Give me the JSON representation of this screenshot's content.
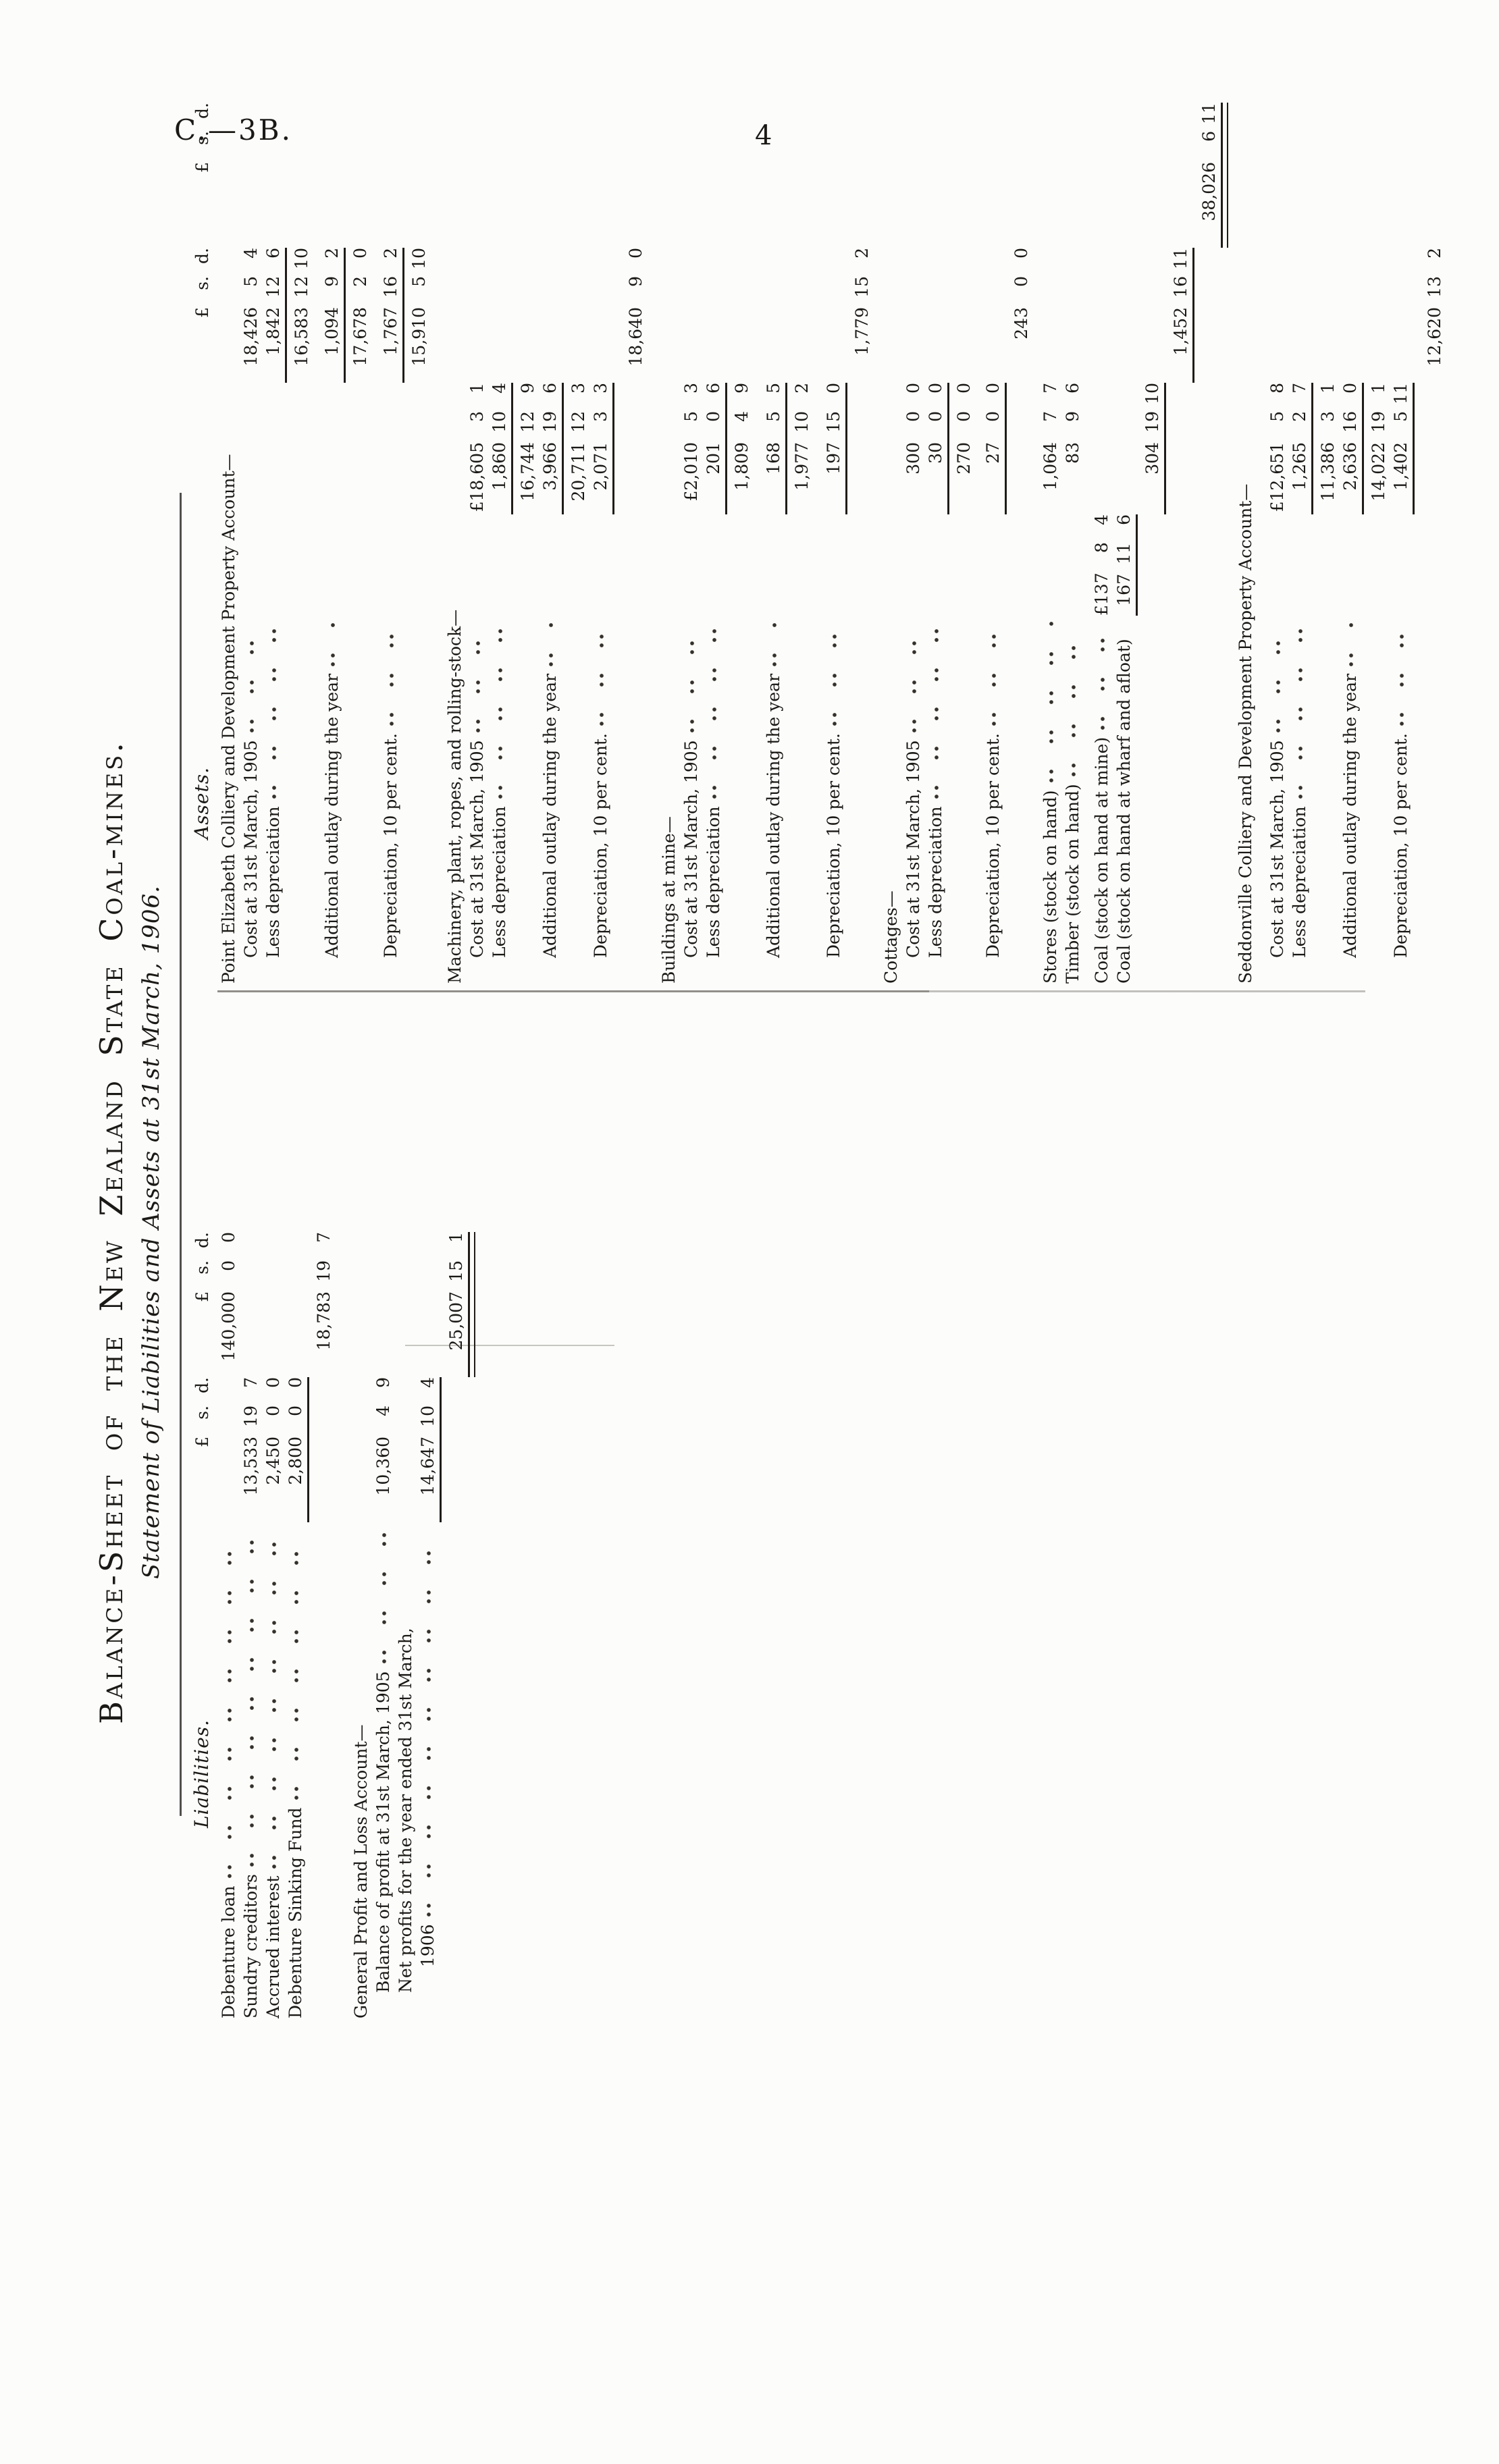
{
  "page": {
    "doc_ref": "C.—3B.",
    "page_number": "4"
  },
  "sheet": {
    "title": "Balance-Sheet of the New Zealand State Coal-mines.",
    "subtitle": "Statement of Liabilities and Assets at 31st March, 1906.",
    "money_header": {
      "pound": "£",
      "s": "s.",
      "d": "d."
    },
    "liabilities": {
      "heading": "Liabilities.",
      "rows": [
        {
          "l": "Debenture loan",
          "d": 1,
          "b": "140,000 0 0"
        },
        {
          "l": "Sundry creditors",
          "d": 1,
          "a": "13,533 19 7"
        },
        {
          "l": "Accrued interest",
          "d": 1,
          "a": "2,450 0 0"
        },
        {
          "l": "Debenture Sinking Fund",
          "d": 1,
          "a": "2,800 0 0"
        },
        {
          "rule": [
            "a"
          ]
        },
        {
          "b": "18,783 19 7"
        },
        {
          "l": "General Profit and Loss Account—",
          "span": 1,
          "mt": 22
        },
        {
          "l": "Balance of profit at 31st March, 1905",
          "i": 1,
          "d": 1,
          "a": "10,360 4 9"
        },
        {
          "l": "Net profits for the year ended 31st March,",
          "i": 1
        },
        {
          "l": "1906",
          "i": 2,
          "d": 1,
          "a": "14,647 10 4"
        },
        {
          "rule": [
            "a"
          ]
        },
        {
          "b": "25,007 15 1"
        },
        {
          "rule": [
            "b"
          ],
          "dbl": 1
        }
      ]
    },
    "assets": {
      "heading": "Assets.",
      "rows": [
        {
          "l": "Point Elizabeth Colliery and Development Property Account—",
          "span": 1
        },
        {
          "l": "Cost at 31st March, 1905",
          "i": 1,
          "d": 1,
          "c2": "18,426 5 4"
        },
        {
          "l": "Less depreciation",
          "i": 1,
          "d": 1,
          "c2": "1,842 12 6"
        },
        {
          "rule": [
            "c2"
          ]
        },
        {
          "c2": "16,583 12 10"
        },
        {
          "l": "Additional outlay during the year",
          "i": 1,
          "d": 1,
          "c2": "1,094 9 2",
          "mt": 12
        },
        {
          "rule": [
            "c2"
          ]
        },
        {
          "c2": "17,678 2 0"
        },
        {
          "l": "Depreciation, 10 per cent.",
          "i": 1,
          "d": 1,
          "c2": "1,767 16 2",
          "mt": 12
        },
        {
          "rule": [
            "c2"
          ]
        },
        {
          "c2": "15,910 5 10"
        },
        {
          "l": "Machinery, plant, ropes, and rolling-stock—",
          "span": 1,
          "mt": 20
        },
        {
          "l": "Cost at 31st March, 1905",
          "i": 1,
          "d": 1,
          "c1": "£18,605 3 1"
        },
        {
          "l": "Less depreciation",
          "i": 1,
          "d": 1,
          "c1": "1,860 10 4"
        },
        {
          "rule": [
            "c1"
          ]
        },
        {
          "c1": "16,744 12 9"
        },
        {
          "l": "Additional outlay during the year",
          "i": 1,
          "d": 1,
          "c1": "3,966 19 6"
        },
        {
          "rule": [
            "c1"
          ]
        },
        {
          "c1": "20,711 12 3"
        },
        {
          "l": "Depreciation, 10 per cent.",
          "i": 1,
          "d": 1,
          "c1": "2,071 3 3"
        },
        {
          "rule": [
            "c1"
          ]
        },
        {
          "c2": "18,640 9 0",
          "mt": 10
        },
        {
          "l": "Buildings at mine—",
          "span": 1,
          "mt": 16
        },
        {
          "l": "Cost at 31st March, 1905",
          "i": 1,
          "d": 1,
          "c1": "£2,010 5 3"
        },
        {
          "l": "Less depreciation",
          "i": 1,
          "d": 1,
          "c1": "201 0 6"
        },
        {
          "rule": [
            "c1"
          ]
        },
        {
          "c1": "1,809 4 9"
        },
        {
          "l": "Additional outlay during the year",
          "i": 1,
          "d": 1,
          "c1": "168 5 5",
          "mt": 14
        },
        {
          "rule": [
            "c1"
          ]
        },
        {
          "c1": "1,977 10 2"
        },
        {
          "l": "Depreciation, 10 per cent.",
          "i": 1,
          "d": 1,
          "c1": "197 15 0",
          "mt": 14
        },
        {
          "rule": [
            "c1"
          ]
        },
        {
          "c2": "1,779 15 2"
        },
        {
          "l": "Cottages—",
          "span": 1,
          "mt": 10
        },
        {
          "l": "Cost at 31st March, 1905",
          "i": 1,
          "d": 1,
          "c1": "300 0 0"
        },
        {
          "l": "Less depreciation",
          "i": 1,
          "d": 1,
          "c1": "30 0 0"
        },
        {
          "rule": [
            "c1"
          ]
        },
        {
          "c1": "270 0 0"
        },
        {
          "l": "Depreciation, 10 per cent.",
          "i": 1,
          "d": 1,
          "c1": "27 0 0",
          "mt": 10
        },
        {
          "rule": [
            "c1"
          ]
        },
        {
          "c2": "243 0 0"
        },
        {
          "l": "Stores (stock on hand)",
          "d": 1,
          "c1": "1,064 7 7",
          "mt": 10
        },
        {
          "l": "Timber (stock on hand)",
          "d": 1,
          "c1": "83 9 6"
        },
        {
          "l": "Coal (stock on hand at mine)",
          "d": 1,
          "inner": "£137 8 4",
          "mt": 10
        },
        {
          "l": "Coal (stock on hand at wharf and afloat)",
          "inner": "167 11 6"
        },
        {
          "rule": [
            "inner"
          ]
        },
        {
          "c1": "304 19 10"
        },
        {
          "rule": [
            "c1"
          ]
        },
        {
          "c2": "1,452 16 11"
        },
        {
          "rule": [
            "c2"
          ]
        },
        {
          "c3": "38,026 6 11"
        },
        {
          "rule": [
            "c3"
          ],
          "dbl": 1
        },
        {
          "l": "Seddonville Colliery and Development Property Account—",
          "span": 1,
          "mt": 12
        },
        {
          "l": "Cost at 31st March, 1905",
          "i": 1,
          "d": 1,
          "c1": "£12,651 5 8",
          "mt": 14
        },
        {
          "l": "Less depreciation",
          "i": 1,
          "d": 1,
          "c1": "1,265 2 7"
        },
        {
          "rule": [
            "c1"
          ]
        },
        {
          "c1": "11,386 3 1"
        },
        {
          "l": "Additional outlay during the year",
          "i": 1,
          "d": 1,
          "c1": "2,636 16 0"
        },
        {
          "rule": [
            "c1"
          ]
        },
        {
          "c1": "14,022 19 1"
        },
        {
          "l": "Depreciation, 10 per cent.",
          "i": 1,
          "d": 1,
          "c1": "1,402 5 11"
        },
        {
          "rule": [
            "c1"
          ]
        },
        {
          "c2": "12,620 13 2",
          "mt": 8
        }
      ]
    }
  }
}
